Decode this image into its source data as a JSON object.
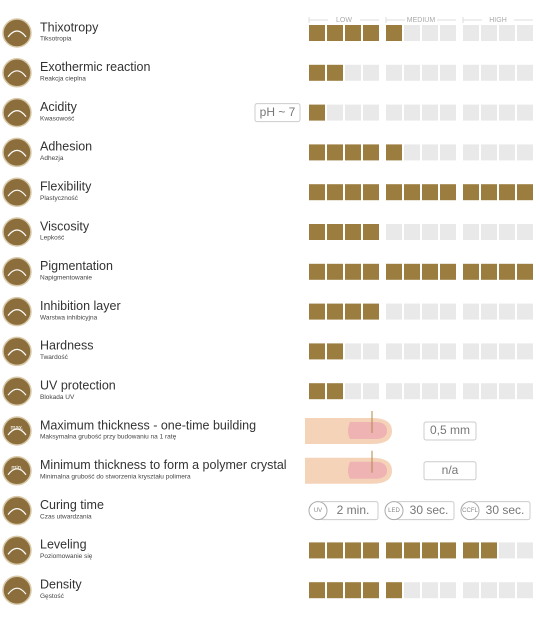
{
  "scale": {
    "labels": [
      "LOW",
      "MEDIUM",
      "HIGH"
    ],
    "max": 12
  },
  "rows": [
    {
      "name": "Thixotropy",
      "subtitle": "Tiksotropia",
      "rating": 5
    },
    {
      "name": "Exothermic reaction",
      "subtitle": "Reakcja cieplna",
      "rating": 2
    },
    {
      "name": "Acidity",
      "subtitle": "Kwasowość",
      "note": "pH ~ 7",
      "rating": 1
    },
    {
      "name": "Adhesion",
      "subtitle": "Adhezja",
      "rating": 5
    },
    {
      "name": "Flexibility",
      "subtitle": "Plastyczność",
      "rating": 12
    },
    {
      "name": "Viscosity",
      "subtitle": "Lepkość",
      "rating": 4
    },
    {
      "name": "Pigmentation",
      "subtitle": "Napigmentowanie",
      "rating": 12
    },
    {
      "name": "Inhibition layer",
      "subtitle": "Warstwa inhibicyjna",
      "rating": 4
    },
    {
      "name": "Hardness",
      "subtitle": "Twardość",
      "rating": 2
    },
    {
      "name": "UV protection",
      "subtitle": "Blokada UV",
      "rating": 2
    },
    {
      "name": "Maximum thickness - one-time building",
      "subtitle": "Maksymalna grubość przy budowaniu na 1 ratę",
      "icon": "max.",
      "value": "0,5 mm"
    },
    {
      "name": "Minimum thickness to form a polymer crystal",
      "subtitle": "Minimalna grubość do stworzenia kryształu polimera",
      "icon": "min.",
      "value": "n/a"
    },
    {
      "name": "Curing time",
      "subtitle": "Czas utwardzania",
      "times": [
        {
          "label": "UV",
          "value": "2 min."
        },
        {
          "label": "LED",
          "value": "30 sec."
        },
        {
          "label": "CCFL",
          "value": "30 sec."
        }
      ]
    },
    {
      "name": "Leveling",
      "subtitle": "Poziomowanie się",
      "rating": 10
    },
    {
      "name": "Density",
      "subtitle": "Gęstość",
      "rating": 5
    }
  ]
}
